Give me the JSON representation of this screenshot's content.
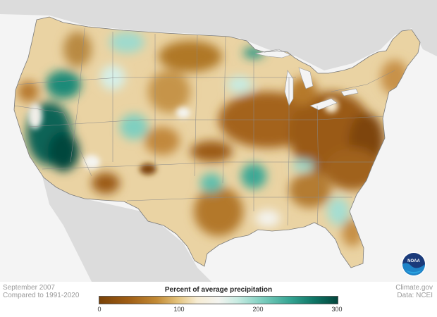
{
  "map": {
    "title": "Percent of average precipitation",
    "period": "September 2007",
    "baseline": "Compared to 1991-2020",
    "credit": "Climate.gov",
    "source": "Data: NCEI",
    "logo_text": "NOAA"
  },
  "legend": {
    "colors": {
      "very_dry": "#7a4208",
      "dry": "#c28a35",
      "near_normal": "#f4f4f0",
      "wet": "#7fcfc0",
      "very_wet": "#03463d"
    },
    "ticks": [
      {
        "value": 0,
        "label": "0"
      },
      {
        "value": 100,
        "label": "100"
      },
      {
        "value": 200,
        "label": "200"
      },
      {
        "value": 300,
        "label": "300"
      }
    ],
    "range": [
      0,
      300
    ]
  }
}
